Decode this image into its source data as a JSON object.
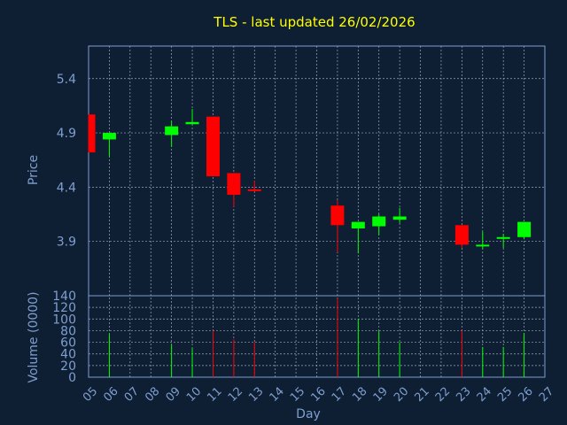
{
  "chart_data": [
    {
      "type": "candlestick",
      "title": "TLS - last updated 26/02/2026",
      "ylabel": "Price",
      "yticks": [
        "3.9",
        "4.4",
        "4.9",
        "5.4"
      ],
      "ylim": [
        3.4,
        5.7
      ],
      "x_days": [
        "05",
        "06",
        "07",
        "08",
        "09",
        "10",
        "11",
        "12",
        "13",
        "14",
        "15",
        "16",
        "17",
        "18",
        "19",
        "20",
        "21",
        "22",
        "23",
        "24",
        "25",
        "26",
        "27"
      ],
      "grid": true,
      "candles": [
        {
          "day": "05",
          "open": 5.07,
          "high": 5.07,
          "low": 4.72,
          "close": 4.72
        },
        {
          "day": "06",
          "open": 4.84,
          "high": 4.9,
          "low": 4.68,
          "close": 4.9
        },
        {
          "day": "09",
          "open": 4.88,
          "high": 5.01,
          "low": 4.77,
          "close": 4.96
        },
        {
          "day": "10",
          "open": 4.98,
          "high": 5.12,
          "low": 4.98,
          "close": 5.0
        },
        {
          "day": "11",
          "open": 5.05,
          "high": 5.05,
          "low": 4.5,
          "close": 4.5
        },
        {
          "day": "12",
          "open": 4.53,
          "high": 4.53,
          "low": 4.22,
          "close": 4.33
        },
        {
          "day": "13",
          "open": 4.38,
          "high": 4.46,
          "low": 4.36,
          "close": 4.37
        },
        {
          "day": "17",
          "open": 4.23,
          "high": 4.28,
          "low": 3.8,
          "close": 4.05
        },
        {
          "day": "18",
          "open": 4.02,
          "high": 4.08,
          "low": 3.79,
          "close": 4.08
        },
        {
          "day": "19",
          "open": 4.04,
          "high": 4.15,
          "low": 3.96,
          "close": 4.13
        },
        {
          "day": "20",
          "open": 4.1,
          "high": 4.21,
          "low": 4.07,
          "close": 4.13
        },
        {
          "day": "23",
          "open": 4.05,
          "high": 4.05,
          "low": 3.84,
          "close": 3.87
        },
        {
          "day": "24",
          "open": 3.86,
          "high": 3.99,
          "low": 3.83,
          "close": 3.87
        },
        {
          "day": "25",
          "open": 3.93,
          "high": 3.97,
          "low": 3.84,
          "close": 3.94
        },
        {
          "day": "26",
          "open": 3.94,
          "high": 4.08,
          "low": 3.92,
          "close": 4.08
        }
      ]
    },
    {
      "type": "bar",
      "ylabel": "Volume (0000)",
      "xlabel": "Day",
      "yticks": [
        "0",
        "20",
        "40",
        "60",
        "80",
        "100",
        "120",
        "140"
      ],
      "ylim": [
        0,
        140
      ],
      "bars": [
        {
          "day": "06",
          "value": 75,
          "dir": "up"
        },
        {
          "day": "09",
          "value": 56,
          "dir": "up"
        },
        {
          "day": "10",
          "value": 50,
          "dir": "up"
        },
        {
          "day": "11",
          "value": 80,
          "dir": "down"
        },
        {
          "day": "12",
          "value": 65,
          "dir": "down"
        },
        {
          "day": "13",
          "value": 60,
          "dir": "down"
        },
        {
          "day": "17",
          "value": 136,
          "dir": "down"
        },
        {
          "day": "18",
          "value": 100,
          "dir": "up"
        },
        {
          "day": "19",
          "value": 80,
          "dir": "up"
        },
        {
          "day": "20",
          "value": 60,
          "dir": "up"
        },
        {
          "day": "23",
          "value": 80,
          "dir": "down"
        },
        {
          "day": "24",
          "value": 52,
          "dir": "up"
        },
        {
          "day": "25",
          "value": 52,
          "dir": "up"
        },
        {
          "day": "26",
          "value": 76,
          "dir": "up"
        }
      ]
    }
  ],
  "colors": {
    "up": "#00ff00",
    "down": "#ff0000",
    "axis": "#7f9fcf",
    "title": "#ffff00",
    "background": "#0e1e33",
    "grid": "#9aa8bb"
  }
}
